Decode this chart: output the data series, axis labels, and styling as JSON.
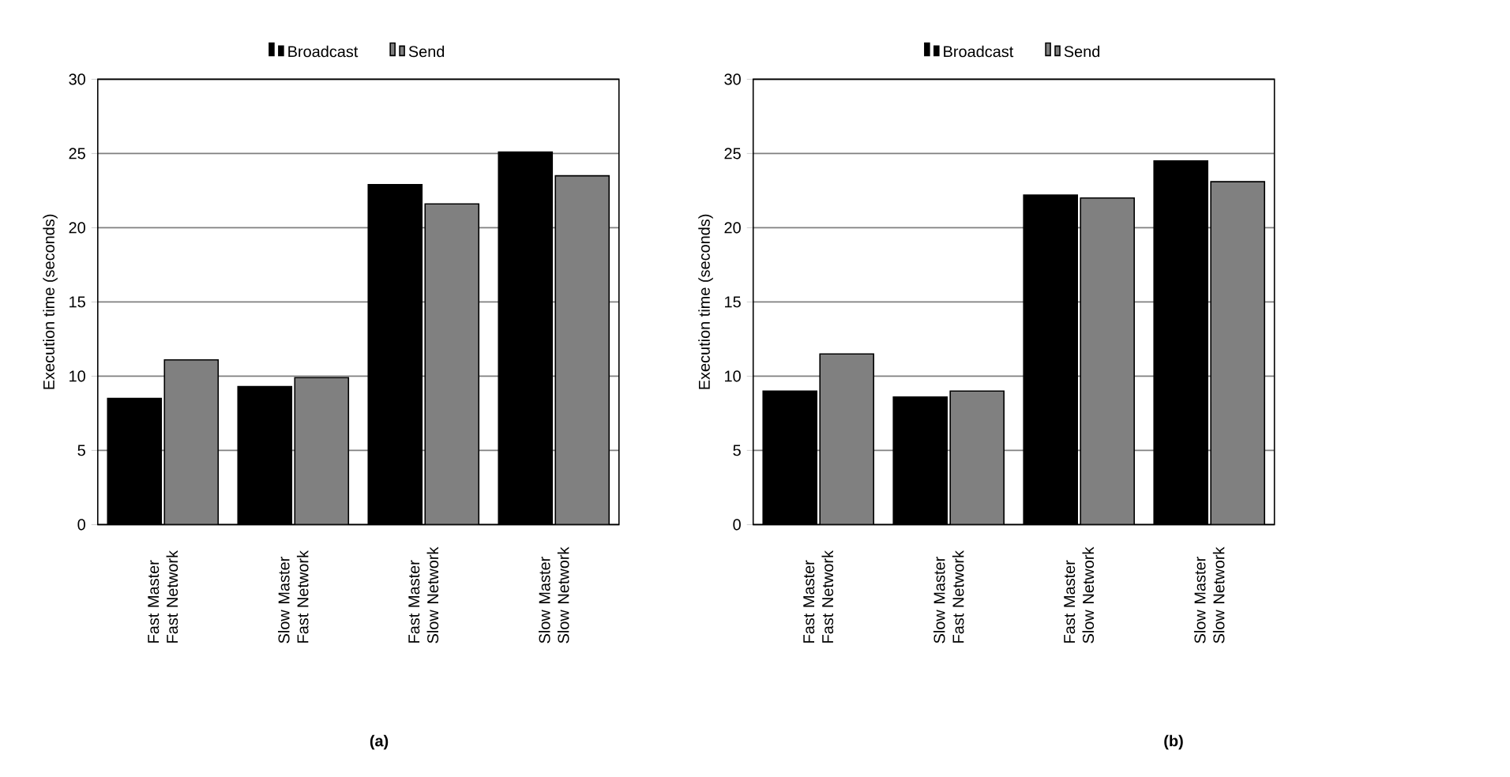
{
  "chart_data": [
    {
      "type": "bar",
      "ylabel": "Execution time (seconds)",
      "categories": [
        "Fast Master Fast Network",
        "Slow Master Fast Network",
        "Fast Master Slow Network",
        "Slow Master Slow Network"
      ],
      "series": [
        {
          "name": "Broadcast",
          "color": "#000000",
          "values": [
            8.5,
            9.3,
            22.9,
            25.1
          ]
        },
        {
          "name": "Send",
          "color": "#808080",
          "values": [
            11.1,
            9.9,
            21.6,
            23.5
          ]
        }
      ],
      "ylim": [
        0,
        30
      ],
      "yticks": [
        0,
        5,
        10,
        15,
        20,
        25,
        30
      ],
      "grid": "y",
      "legend": "top",
      "annotations": [
        "(a)"
      ]
    },
    {
      "type": "bar",
      "ylabel": "Execution time (seconds)",
      "categories": [
        "Fast Master Fast Network",
        "Slow Master Fast Network",
        "Fast Master Slow Network",
        "Slow Master Slow Network"
      ],
      "series": [
        {
          "name": "Broadcast",
          "color": "#000000",
          "values": [
            9.0,
            8.6,
            22.2,
            24.5
          ]
        },
        {
          "name": "Send",
          "color": "#808080",
          "values": [
            11.5,
            9.0,
            22.0,
            23.1
          ]
        }
      ],
      "ylim": [
        0,
        30
      ],
      "yticks": [
        0,
        5,
        10,
        15,
        20,
        25,
        30
      ],
      "grid": "y",
      "legend": "top",
      "annotations": [
        "(b)"
      ]
    }
  ]
}
